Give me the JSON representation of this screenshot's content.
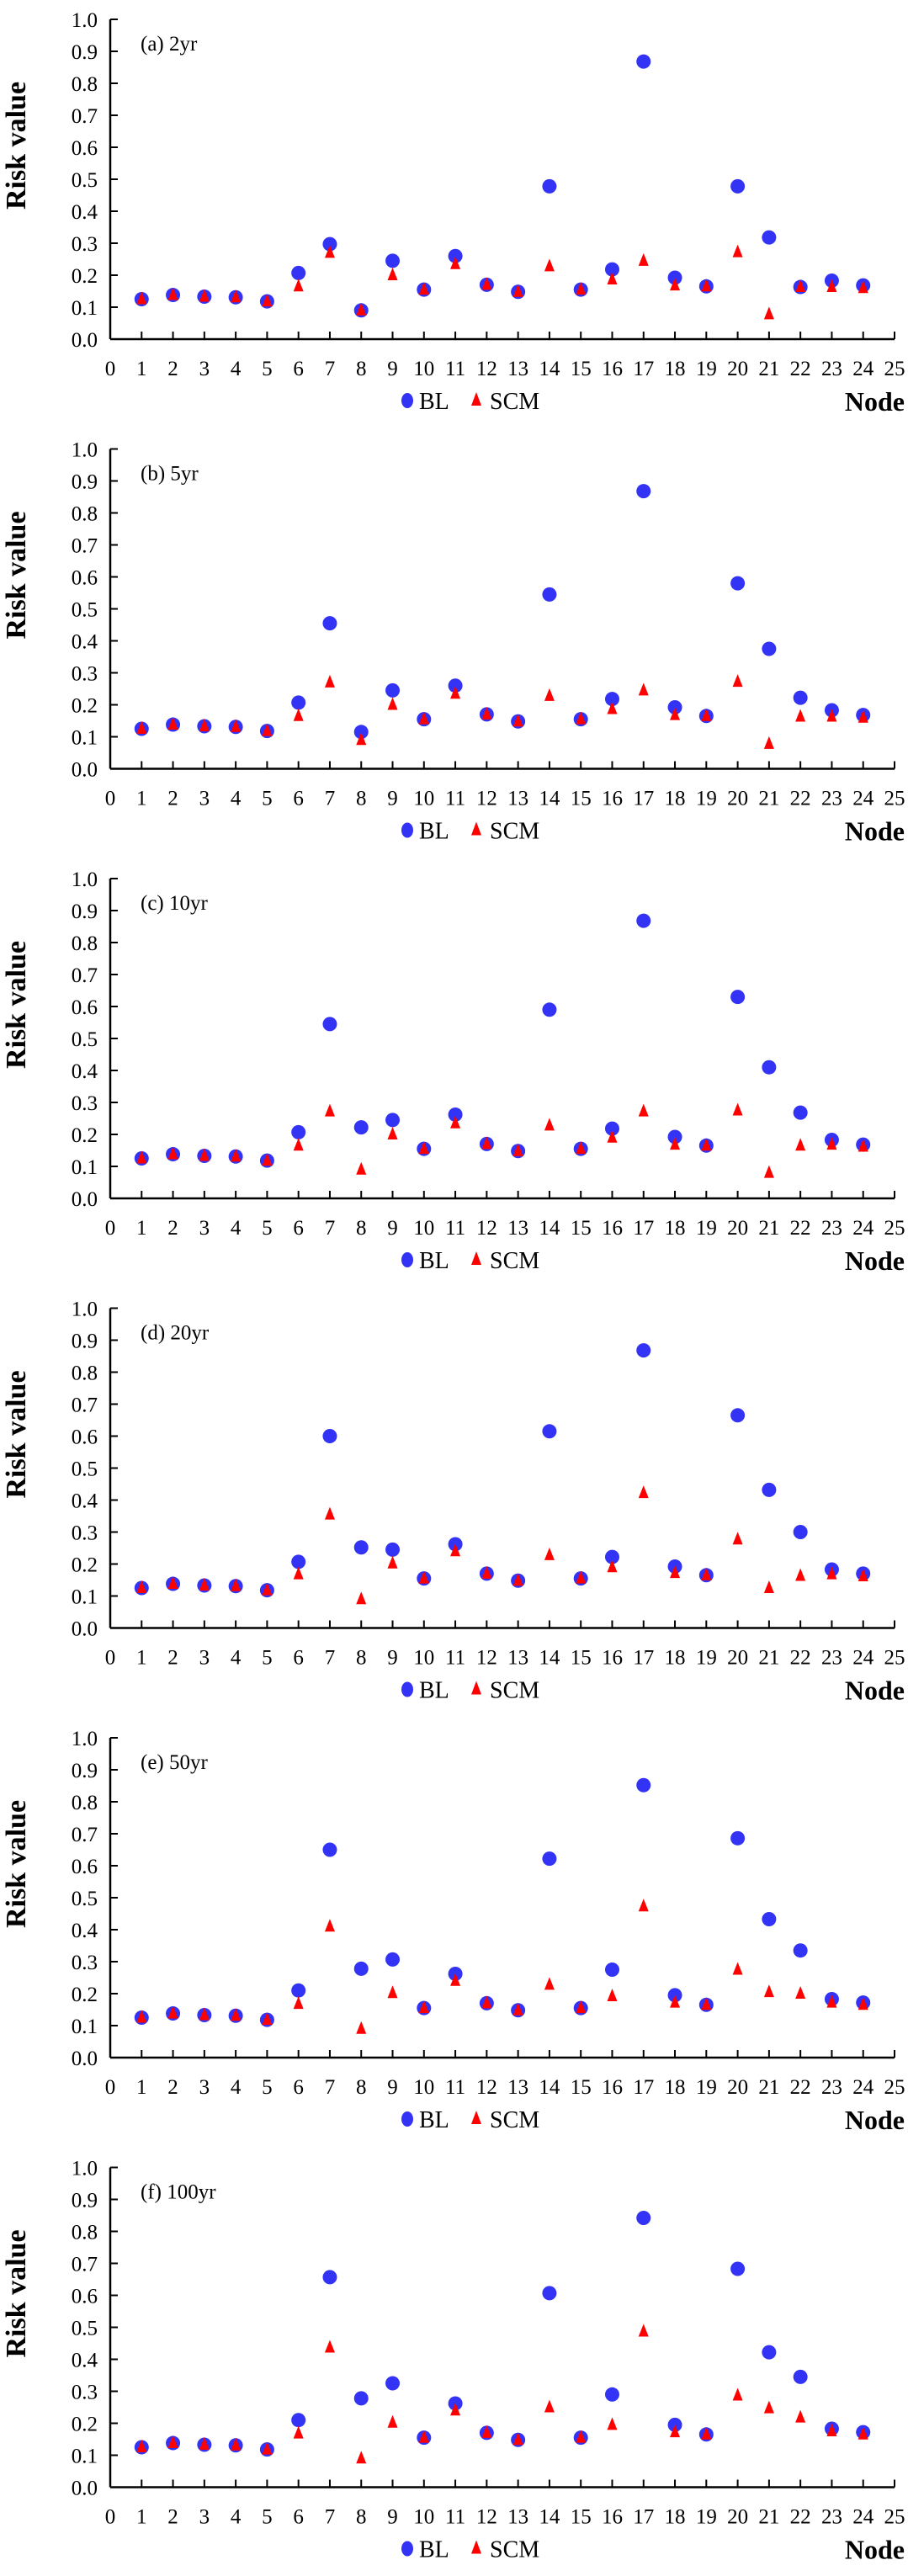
{
  "chart_data": [
    {
      "type": "scatter",
      "title": "(a) 2yr",
      "xlabel": "Node",
      "ylabel": "Risk value",
      "xlim": [
        0,
        25
      ],
      "ylim": [
        0,
        1.0
      ],
      "grid": false,
      "legend": "bottom-center",
      "x": [
        1,
        2,
        3,
        4,
        5,
        6,
        7,
        8,
        9,
        10,
        11,
        12,
        13,
        14,
        15,
        16,
        17,
        18,
        19,
        20,
        21,
        22,
        23,
        24
      ],
      "series": [
        {
          "name": "BL",
          "values": [
            0.125,
            0.138,
            0.133,
            0.131,
            0.118,
            0.207,
            0.297,
            0.09,
            0.245,
            0.155,
            0.26,
            0.17,
            0.148,
            0.478,
            0.155,
            0.218,
            0.868,
            0.192,
            0.165,
            0.478,
            0.318,
            0.163,
            0.183,
            0.168
          ]
        },
        {
          "name": "SCM",
          "values": [
            0.125,
            0.138,
            0.133,
            0.131,
            0.118,
            0.165,
            0.27,
            0.09,
            0.2,
            0.155,
            0.235,
            0.17,
            0.148,
            0.228,
            0.155,
            0.187,
            0.245,
            0.168,
            0.165,
            0.272,
            0.078,
            0.163,
            0.163,
            0.16
          ]
        }
      ]
    },
    {
      "type": "scatter",
      "title": "(b) 5yr",
      "xlabel": "Node",
      "ylabel": "Risk value",
      "xlim": [
        0,
        25
      ],
      "ylim": [
        0,
        1.0
      ],
      "grid": false,
      "legend": "bottom-center",
      "x": [
        1,
        2,
        3,
        4,
        5,
        6,
        7,
        8,
        9,
        10,
        11,
        12,
        13,
        14,
        15,
        16,
        17,
        18,
        19,
        20,
        21,
        22,
        23,
        24
      ],
      "series": [
        {
          "name": "BL",
          "values": [
            0.125,
            0.138,
            0.133,
            0.131,
            0.118,
            0.207,
            0.455,
            0.115,
            0.245,
            0.155,
            0.26,
            0.17,
            0.148,
            0.545,
            0.155,
            0.218,
            0.868,
            0.192,
            0.165,
            0.58,
            0.375,
            0.222,
            0.183,
            0.168
          ]
        },
        {
          "name": "SCM",
          "values": [
            0.125,
            0.138,
            0.133,
            0.131,
            0.118,
            0.165,
            0.27,
            0.09,
            0.2,
            0.155,
            0.235,
            0.17,
            0.148,
            0.228,
            0.155,
            0.187,
            0.245,
            0.168,
            0.165,
            0.272,
            0.078,
            0.163,
            0.163,
            0.16
          ]
        }
      ]
    },
    {
      "type": "scatter",
      "title": "(c) 10yr",
      "xlabel": "Node",
      "ylabel": "Risk value",
      "xlim": [
        0,
        25
      ],
      "ylim": [
        0,
        1.0
      ],
      "grid": false,
      "legend": "bottom-center",
      "x": [
        1,
        2,
        3,
        4,
        5,
        6,
        7,
        8,
        9,
        10,
        11,
        12,
        13,
        14,
        15,
        16,
        17,
        18,
        19,
        20,
        21,
        22,
        23,
        24
      ],
      "series": [
        {
          "name": "BL",
          "values": [
            0.125,
            0.138,
            0.133,
            0.131,
            0.118,
            0.207,
            0.545,
            0.222,
            0.245,
            0.155,
            0.262,
            0.17,
            0.148,
            0.59,
            0.155,
            0.218,
            0.868,
            0.192,
            0.165,
            0.63,
            0.41,
            0.268,
            0.183,
            0.168
          ]
        },
        {
          "name": "SCM",
          "values": [
            0.125,
            0.138,
            0.133,
            0.131,
            0.118,
            0.165,
            0.272,
            0.09,
            0.2,
            0.155,
            0.235,
            0.17,
            0.148,
            0.228,
            0.155,
            0.19,
            0.272,
            0.168,
            0.165,
            0.275,
            0.08,
            0.165,
            0.168,
            0.162
          ]
        }
      ]
    },
    {
      "type": "scatter",
      "title": "(d) 20yr",
      "xlabel": "Node",
      "ylabel": "Risk value",
      "xlim": [
        0,
        25
      ],
      "ylim": [
        0,
        1.0
      ],
      "grid": false,
      "legend": "bottom-center",
      "x": [
        1,
        2,
        3,
        4,
        5,
        6,
        7,
        8,
        9,
        10,
        11,
        12,
        13,
        14,
        15,
        16,
        17,
        18,
        19,
        20,
        21,
        22,
        23,
        24
      ],
      "series": [
        {
          "name": "BL",
          "values": [
            0.125,
            0.138,
            0.133,
            0.131,
            0.118,
            0.207,
            0.6,
            0.252,
            0.245,
            0.155,
            0.262,
            0.17,
            0.148,
            0.615,
            0.155,
            0.222,
            0.868,
            0.192,
            0.165,
            0.665,
            0.432,
            0.3,
            0.183,
            0.17
          ]
        },
        {
          "name": "SCM",
          "values": [
            0.125,
            0.138,
            0.133,
            0.131,
            0.118,
            0.168,
            0.355,
            0.09,
            0.202,
            0.155,
            0.24,
            0.17,
            0.148,
            0.228,
            0.155,
            0.19,
            0.422,
            0.172,
            0.165,
            0.277,
            0.125,
            0.163,
            0.168,
            0.162
          ]
        }
      ]
    },
    {
      "type": "scatter",
      "title": "(e) 50yr",
      "xlabel": "Node",
      "ylabel": "Risk value",
      "xlim": [
        0,
        25
      ],
      "ylim": [
        0,
        1.0
      ],
      "grid": false,
      "legend": "bottom-center",
      "x": [
        1,
        2,
        3,
        4,
        5,
        6,
        7,
        8,
        9,
        10,
        11,
        12,
        13,
        14,
        15,
        16,
        17,
        18,
        19,
        20,
        21,
        22,
        23,
        24
      ],
      "series": [
        {
          "name": "BL",
          "values": [
            0.125,
            0.138,
            0.133,
            0.131,
            0.118,
            0.21,
            0.65,
            0.278,
            0.307,
            0.155,
            0.262,
            0.17,
            0.148,
            0.622,
            0.155,
            0.275,
            0.852,
            0.195,
            0.165,
            0.686,
            0.433,
            0.335,
            0.183,
            0.172
          ]
        },
        {
          "name": "SCM",
          "values": [
            0.125,
            0.138,
            0.133,
            0.131,
            0.118,
            0.168,
            0.41,
            0.09,
            0.202,
            0.155,
            0.24,
            0.17,
            0.148,
            0.228,
            0.155,
            0.192,
            0.473,
            0.172,
            0.165,
            0.275,
            0.205,
            0.2,
            0.172,
            0.165
          ]
        }
      ]
    },
    {
      "type": "scatter",
      "title": "(f) 100yr",
      "xlabel": "Node",
      "ylabel": "Risk value",
      "xlim": [
        0,
        25
      ],
      "ylim": [
        0,
        1.0
      ],
      "grid": false,
      "legend": "bottom-center",
      "x": [
        1,
        2,
        3,
        4,
        5,
        6,
        7,
        8,
        9,
        10,
        11,
        12,
        13,
        14,
        15,
        16,
        17,
        18,
        19,
        20,
        21,
        22,
        23,
        24
      ],
      "series": [
        {
          "name": "BL",
          "values": [
            0.125,
            0.138,
            0.133,
            0.131,
            0.118,
            0.21,
            0.657,
            0.278,
            0.325,
            0.155,
            0.262,
            0.17,
            0.148,
            0.607,
            0.155,
            0.29,
            0.842,
            0.195,
            0.165,
            0.683,
            0.422,
            0.345,
            0.183,
            0.172
          ]
        },
        {
          "name": "SCM",
          "values": [
            0.125,
            0.138,
            0.133,
            0.131,
            0.118,
            0.168,
            0.437,
            0.09,
            0.202,
            0.155,
            0.24,
            0.17,
            0.148,
            0.25,
            0.155,
            0.195,
            0.487,
            0.172,
            0.165,
            0.287,
            0.247,
            0.218,
            0.175,
            0.165
          ]
        }
      ]
    }
  ],
  "axis": {
    "yticks": [
      "0.0",
      "0.1",
      "0.2",
      "0.3",
      "0.4",
      "0.5",
      "0.6",
      "0.7",
      "0.8",
      "0.9",
      "1.0"
    ],
    "xticks": [
      "0",
      "1",
      "2",
      "3",
      "4",
      "5",
      "6",
      "7",
      "8",
      "9",
      "10",
      "11",
      "12",
      "13",
      "14",
      "15",
      "16",
      "17",
      "18",
      "19",
      "20",
      "21",
      "22",
      "23",
      "24",
      "25"
    ]
  },
  "colors": {
    "BL": "#3333f5",
    "SCM": "#ff0000"
  }
}
